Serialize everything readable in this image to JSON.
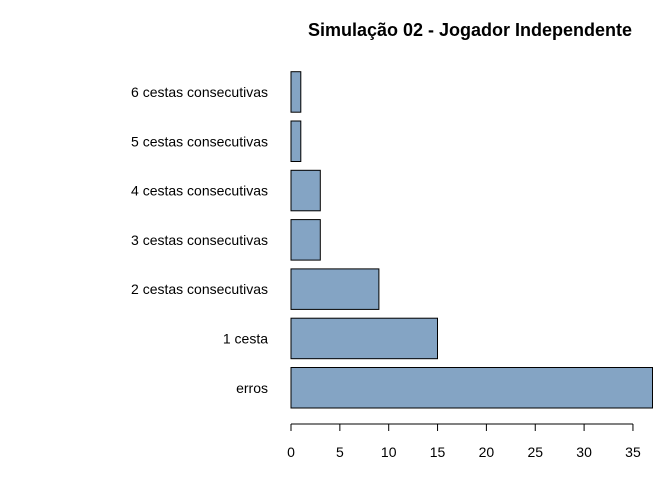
{
  "chart_data": {
    "type": "bar",
    "orientation": "horizontal",
    "title": "Simulação 02 - Jogador Independente",
    "xlabel": "",
    "ylabel": "",
    "categories": [
      "erros",
      "1 cesta",
      "2 cestas consecutivas",
      "3 cestas consecutivas",
      "4 cestas consecutivas",
      "5 cestas consecutivas",
      "6 cestas consecutivas"
    ],
    "values": [
      37,
      15,
      9,
      3,
      3,
      1,
      1
    ],
    "xlim": [
      0,
      37
    ],
    "x_ticks": [
      "0",
      "5",
      "10",
      "15",
      "20",
      "25",
      "30",
      "35"
    ],
    "bar_color": "#84a4c4",
    "grid": false,
    "legend": "none"
  }
}
